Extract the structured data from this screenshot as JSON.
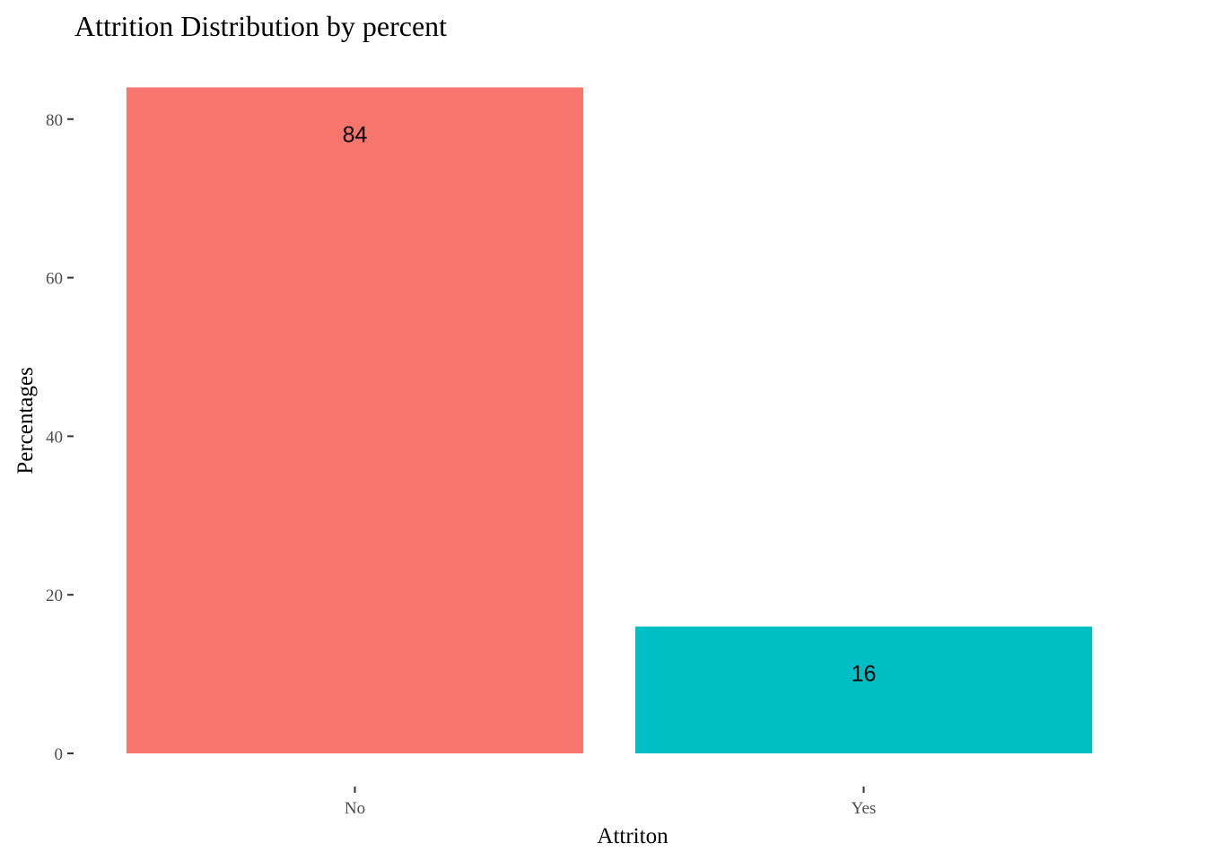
{
  "chart_data": {
    "type": "bar",
    "title": "Attrition Distribution by percent",
    "xlabel": "Attriton",
    "ylabel": "Percentages",
    "categories": [
      "No",
      "Yes"
    ],
    "values": [
      84,
      16
    ],
    "data_labels": [
      "84",
      "16"
    ],
    "colors": [
      "#F8766D",
      "#00BFC4"
    ],
    "yticks": [
      0,
      20,
      40,
      60,
      80
    ],
    "ylim": [
      0,
      88
    ],
    "grid": false,
    "legend": "none"
  }
}
